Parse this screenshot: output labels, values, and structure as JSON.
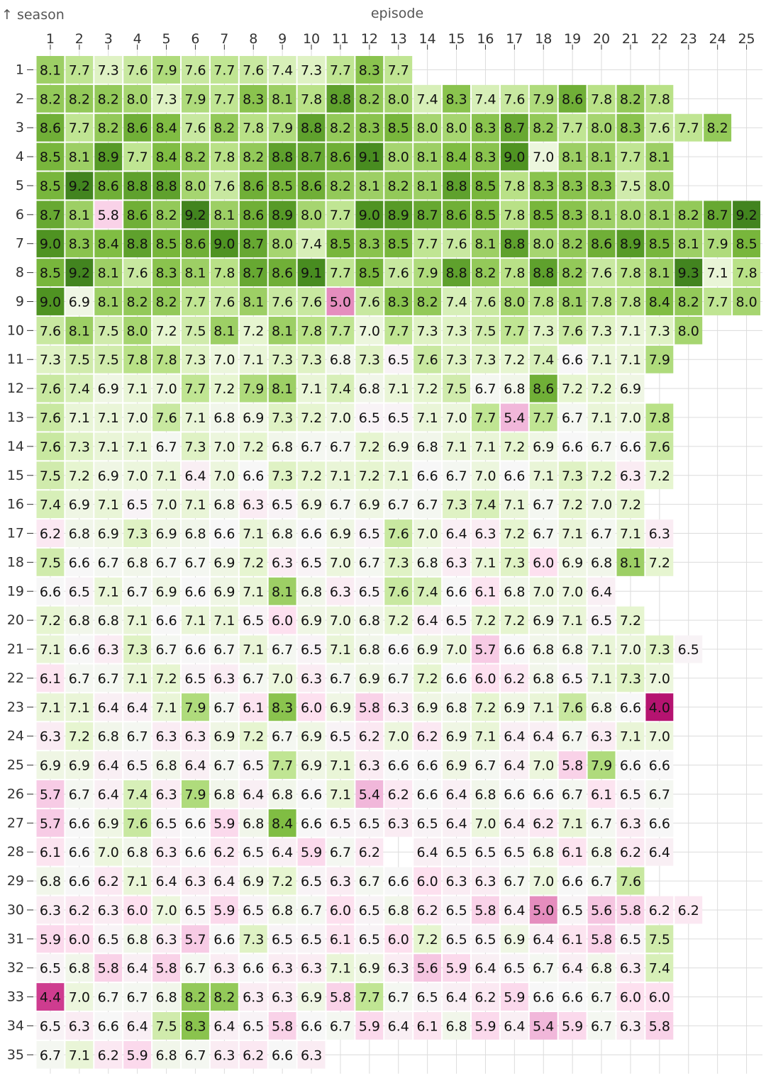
{
  "chart_data": {
    "type": "heatmap",
    "xlabel": "episode",
    "ylabel": "↑ season",
    "x_ticks": [
      1,
      2,
      3,
      4,
      5,
      6,
      7,
      8,
      9,
      10,
      11,
      12,
      13,
      14,
      15,
      16,
      17,
      18,
      19,
      20,
      21,
      22,
      23,
      24,
      25
    ],
    "y_ticks": [
      1,
      2,
      3,
      4,
      5,
      6,
      7,
      8,
      9,
      10,
      11,
      12,
      13,
      14,
      15,
      16,
      17,
      18,
      19,
      20,
      21,
      22,
      23,
      24,
      25,
      26,
      27,
      28,
      29,
      30,
      31,
      32,
      33,
      34,
      35
    ],
    "grid": true,
    "color_scheme": "PiYG",
    "color_domain": [
      4.0,
      9.2
    ],
    "rows": [
      [
        8.1,
        7.7,
        7.3,
        7.6,
        7.9,
        7.6,
        7.7,
        7.6,
        7.4,
        7.3,
        7.7,
        8.3,
        7.7
      ],
      [
        8.2,
        8.2,
        8.2,
        8.0,
        7.3,
        7.9,
        7.7,
        8.3,
        8.1,
        7.8,
        8.8,
        8.2,
        8.0,
        7.4,
        8.3,
        7.4,
        7.6,
        7.9,
        8.6,
        7.8,
        8.2,
        7.8
      ],
      [
        8.6,
        7.7,
        8.2,
        8.6,
        8.4,
        7.6,
        8.2,
        7.8,
        7.9,
        8.8,
        8.2,
        8.3,
        8.5,
        8.0,
        8.0,
        8.3,
        8.7,
        8.2,
        7.7,
        8.0,
        8.3,
        7.6,
        7.7,
        8.2
      ],
      [
        8.5,
        8.1,
        8.9,
        7.7,
        8.4,
        8.2,
        7.8,
        8.2,
        8.8,
        8.7,
        8.6,
        9.1,
        8.0,
        8.1,
        8.4,
        8.3,
        9.0,
        7.0,
        8.1,
        8.1,
        7.7,
        8.1
      ],
      [
        8.5,
        9.2,
        8.6,
        8.8,
        8.8,
        8.0,
        7.6,
        8.6,
        8.5,
        8.6,
        8.2,
        8.1,
        8.2,
        8.1,
        8.8,
        8.5,
        7.8,
        8.3,
        8.3,
        8.3,
        7.5,
        8.0
      ],
      [
        8.7,
        8.1,
        5.8,
        8.6,
        8.2,
        9.2,
        8.1,
        8.6,
        8.9,
        8.0,
        7.7,
        9.0,
        8.9,
        8.7,
        8.6,
        8.5,
        7.8,
        8.5,
        8.3,
        8.1,
        8.0,
        8.1,
        8.2,
        8.7,
        9.2
      ],
      [
        9.0,
        8.3,
        8.4,
        8.8,
        8.5,
        8.6,
        9.0,
        8.7,
        8.0,
        7.4,
        8.5,
        8.3,
        8.5,
        7.7,
        7.6,
        8.1,
        8.8,
        8.0,
        8.2,
        8.6,
        8.9,
        8.5,
        8.1,
        7.9,
        8.5
      ],
      [
        8.5,
        9.2,
        8.1,
        7.6,
        8.3,
        8.1,
        7.8,
        8.7,
        8.6,
        9.1,
        7.7,
        8.5,
        7.6,
        7.9,
        8.8,
        8.2,
        7.8,
        8.8,
        8.2,
        7.6,
        7.8,
        8.1,
        9.3,
        7.1,
        7.8
      ],
      [
        9.0,
        6.9,
        8.1,
        8.2,
        8.2,
        7.7,
        7.6,
        8.1,
        7.6,
        7.6,
        5.0,
        7.6,
        8.3,
        8.2,
        7.4,
        7.6,
        8.0,
        7.8,
        8.1,
        7.8,
        7.8,
        8.4,
        8.2,
        7.7,
        8.0
      ],
      [
        7.6,
        8.1,
        7.5,
        8.0,
        7.2,
        7.5,
        8.1,
        7.2,
        8.1,
        7.8,
        7.7,
        7.0,
        7.7,
        7.3,
        7.3,
        7.5,
        7.7,
        7.3,
        7.6,
        7.3,
        7.1,
        7.3,
        8.0
      ],
      [
        7.3,
        7.5,
        7.5,
        7.8,
        7.8,
        7.3,
        7.0,
        7.1,
        7.3,
        7.3,
        6.8,
        7.3,
        6.5,
        7.6,
        7.3,
        7.3,
        7.2,
        7.4,
        6.6,
        7.1,
        7.1,
        7.9
      ],
      [
        7.6,
        7.4,
        6.9,
        7.1,
        7.0,
        7.7,
        7.2,
        7.9,
        8.1,
        7.1,
        7.4,
        6.8,
        7.1,
        7.2,
        7.5,
        6.7,
        6.8,
        8.6,
        7.2,
        7.2,
        6.9
      ],
      [
        7.6,
        7.1,
        7.1,
        7.0,
        7.6,
        7.1,
        6.8,
        6.9,
        7.3,
        7.2,
        7.0,
        6.5,
        6.5,
        7.1,
        7.0,
        7.7,
        5.4,
        7.7,
        6.7,
        7.1,
        7.0,
        7.8
      ],
      [
        7.6,
        7.3,
        7.1,
        7.1,
        6.7,
        7.3,
        7.0,
        7.2,
        6.8,
        6.7,
        6.7,
        7.2,
        6.9,
        6.8,
        7.1,
        7.1,
        7.2,
        6.9,
        6.6,
        6.7,
        6.6,
        7.6
      ],
      [
        7.5,
        7.2,
        6.9,
        7.0,
        7.1,
        6.4,
        7.0,
        6.6,
        7.3,
        7.2,
        7.1,
        7.2,
        7.1,
        6.6,
        6.7,
        7.0,
        6.6,
        7.1,
        7.3,
        7.2,
        6.3,
        7.2
      ],
      [
        7.4,
        6.9,
        7.1,
        6.5,
        7.0,
        7.1,
        6.8,
        6.3,
        6.5,
        6.9,
        6.7,
        6.9,
        6.7,
        6.7,
        7.3,
        7.4,
        7.1,
        6.7,
        7.2,
        7.0,
        7.2
      ],
      [
        6.2,
        6.8,
        6.9,
        7.3,
        6.9,
        6.8,
        6.6,
        7.1,
        6.8,
        6.6,
        6.9,
        6.5,
        7.6,
        7.0,
        6.4,
        6.3,
        7.2,
        6.7,
        7.1,
        6.7,
        7.1,
        6.3
      ],
      [
        7.5,
        6.6,
        6.7,
        6.8,
        6.7,
        6.7,
        6.9,
        7.2,
        6.3,
        6.5,
        7.0,
        6.7,
        7.3,
        6.8,
        6.3,
        7.1,
        7.3,
        6.0,
        6.9,
        6.8,
        8.1,
        7.2
      ],
      [
        6.6,
        6.5,
        7.1,
        6.7,
        6.9,
        6.6,
        6.9,
        7.1,
        8.1,
        6.8,
        6.3,
        6.5,
        7.6,
        7.4,
        6.6,
        6.1,
        6.8,
        7.0,
        7.0,
        6.4
      ],
      [
        7.2,
        6.8,
        6.8,
        7.1,
        6.6,
        7.1,
        7.1,
        6.5,
        6.0,
        6.9,
        7.0,
        6.8,
        7.2,
        6.4,
        6.5,
        7.2,
        7.2,
        6.9,
        7.1,
        6.5,
        7.2
      ],
      [
        7.1,
        6.6,
        6.3,
        7.3,
        6.7,
        6.6,
        6.7,
        7.1,
        6.7,
        6.5,
        7.1,
        6.8,
        6.6,
        6.9,
        7.0,
        5.7,
        6.6,
        6.8,
        6.8,
        7.1,
        7.0,
        7.3,
        6.5
      ],
      [
        6.1,
        6.7,
        6.7,
        7.1,
        7.2,
        6.5,
        6.3,
        6.7,
        7.0,
        6.3,
        6.7,
        6.9,
        6.7,
        7.2,
        6.6,
        6.0,
        6.2,
        6.8,
        6.5,
        7.1,
        7.3,
        7.0
      ],
      [
        7.1,
        7.1,
        6.4,
        6.4,
        7.1,
        7.9,
        6.7,
        6.1,
        8.3,
        6.0,
        6.9,
        5.8,
        6.3,
        6.9,
        6.8,
        7.2,
        6.9,
        7.1,
        7.6,
        6.8,
        6.6,
        4.0
      ],
      [
        6.3,
        7.2,
        6.8,
        6.7,
        6.3,
        6.3,
        6.9,
        7.2,
        6.7,
        6.9,
        6.5,
        6.2,
        7.0,
        6.2,
        6.9,
        7.1,
        6.4,
        6.4,
        6.7,
        6.3,
        7.1,
        7.0
      ],
      [
        6.9,
        6.9,
        6.4,
        6.5,
        6.8,
        6.4,
        6.7,
        6.5,
        7.7,
        6.9,
        7.1,
        6.3,
        6.6,
        6.6,
        6.9,
        6.7,
        6.4,
        7.0,
        5.8,
        7.9,
        6.6,
        6.6
      ],
      [
        5.7,
        6.7,
        6.4,
        7.4,
        6.3,
        7.9,
        6.8,
        6.4,
        6.8,
        6.6,
        7.1,
        5.4,
        6.2,
        6.6,
        6.4,
        6.8,
        6.6,
        6.6,
        6.7,
        6.1,
        6.5,
        6.7
      ],
      [
        5.7,
        6.6,
        6.9,
        7.6,
        6.5,
        6.6,
        5.9,
        6.8,
        8.4,
        6.6,
        6.5,
        6.5,
        6.3,
        6.5,
        6.4,
        7.0,
        6.4,
        6.2,
        7.1,
        6.7,
        6.3,
        6.6
      ],
      [
        6.1,
        6.6,
        7.0,
        6.8,
        6.3,
        6.6,
        6.2,
        6.5,
        6.4,
        5.9,
        6.7,
        6.2,
        null,
        6.4,
        6.5,
        6.5,
        6.5,
        6.8,
        6.1,
        6.8,
        6.2,
        6.4
      ],
      [
        6.8,
        6.6,
        6.2,
        7.1,
        6.4,
        6.3,
        6.4,
        6.9,
        7.2,
        6.5,
        6.3,
        6.7,
        6.6,
        6.0,
        6.3,
        6.3,
        6.7,
        7.0,
        6.6,
        6.7,
        7.6
      ],
      [
        6.3,
        6.2,
        6.3,
        6.0,
        7.0,
        6.5,
        5.9,
        6.5,
        6.8,
        6.7,
        6.0,
        6.5,
        6.8,
        6.2,
        6.5,
        5.8,
        6.4,
        5.0,
        6.5,
        5.6,
        5.8,
        6.2,
        6.2
      ],
      [
        5.9,
        6.0,
        6.5,
        6.8,
        6.3,
        5.7,
        6.6,
        7.3,
        6.5,
        6.5,
        6.1,
        6.5,
        6.0,
        7.2,
        6.5,
        6.5,
        6.9,
        6.4,
        6.1,
        5.8,
        6.5,
        7.5
      ],
      [
        6.5,
        6.8,
        5.8,
        6.4,
        5.8,
        6.7,
        6.3,
        6.6,
        6.3,
        6.3,
        7.1,
        6.9,
        6.3,
        5.6,
        5.9,
        6.4,
        6.5,
        6.7,
        6.4,
        6.8,
        6.3,
        7.4
      ],
      [
        4.4,
        7.0,
        6.7,
        6.7,
        6.8,
        8.2,
        8.2,
        6.3,
        6.3,
        6.9,
        5.8,
        7.7,
        6.7,
        6.5,
        6.4,
        6.2,
        5.9,
        6.6,
        6.6,
        6.7,
        6.0,
        6.0
      ],
      [
        6.5,
        6.3,
        6.6,
        6.4,
        7.5,
        8.3,
        6.4,
        6.5,
        5.8,
        6.6,
        6.7,
        5.9,
        6.4,
        6.1,
        6.8,
        5.9,
        6.4,
        5.4,
        5.9,
        6.7,
        6.3,
        5.8
      ],
      [
        6.7,
        7.1,
        6.2,
        5.9,
        6.8,
        6.7,
        6.3,
        6.2,
        6.6,
        6.3
      ]
    ]
  }
}
